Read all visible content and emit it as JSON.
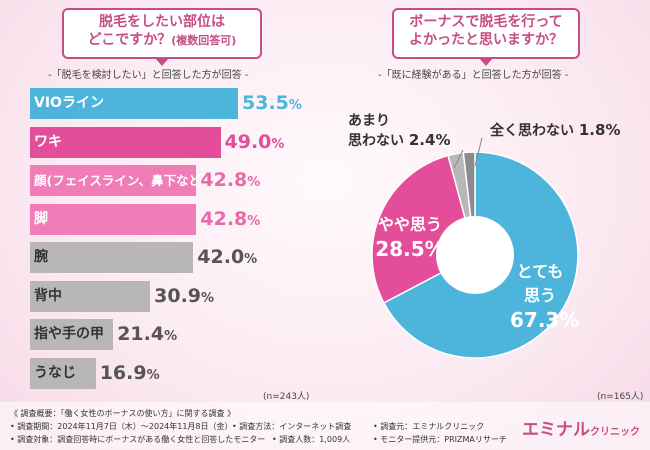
{
  "left": {
    "title_line1": "脱毛をしたい部位は",
    "title_line2": "どこですか？",
    "title_note": "(複数回答可)",
    "subtitle": "-「脱毛を検討したい」と回答した方が回答 -",
    "n_label": "(n=243人)"
  },
  "right": {
    "title_line1": "ボーナスで脱毛を行って",
    "title_line2": "よかったと思いますか？",
    "subtitle": "-「既に経験がある」と回答した方が回答 -",
    "n_label": "(n=165人)"
  },
  "colors": {
    "blue": "#4db5dc",
    "pink_strong": "#e44d9a",
    "pink_light": "#f07cb8",
    "gray": "#b8b6b6",
    "gray_dark": "#8c8a8a",
    "brand": "#c64d85"
  },
  "chart_data": [
    {
      "type": "bar",
      "orientation": "horizontal",
      "title": "脱毛をしたい部位はどこですか？(複数回答可)",
      "categories": [
        "VIOライン",
        "ワキ",
        "顔(フェイスライン、鼻下など)",
        "脚",
        "腕",
        "背中",
        "指や手の甲",
        "うなじ"
      ],
      "values": [
        53.5,
        49.0,
        42.8,
        42.8,
        42.0,
        30.9,
        21.4,
        16.9
      ],
      "value_labels": [
        "53.5%",
        "49.0%",
        "42.8%",
        "42.8%",
        "42.0%",
        "30.9%",
        "21.4%",
        "16.9%"
      ],
      "bar_colors": [
        "#4db5dc",
        "#e44d9a",
        "#f07cb8",
        "#f07cb8",
        "#b8b6b6",
        "#b8b6b6",
        "#b8b6b6",
        "#b8b6b6"
      ],
      "xlim": [
        0,
        60
      ],
      "unit": "%",
      "n": "(n=243人)"
    },
    {
      "type": "pie",
      "donut": true,
      "title": "ボーナスで脱毛を行ってよかったと思いますか？",
      "slices": [
        {
          "label": "とても思う",
          "value": 67.3,
          "value_label": "67.3%",
          "color": "#4db5dc"
        },
        {
          "label": "やや思う",
          "value": 28.5,
          "value_label": "28.5%",
          "color": "#e44d9a"
        },
        {
          "label": "あまり思わない",
          "value": 2.4,
          "value_label": "2.4%",
          "color": "#b8b6b6"
        },
        {
          "label": "全く思わない",
          "value": 1.8,
          "value_label": "1.8%",
          "color": "#8c8a8a"
        }
      ],
      "n": "(n=165人)"
    }
  ],
  "pie_labels": {
    "very_line1": "とても",
    "very_line2": "思う",
    "very_value": "67.3%",
    "somewhat": "やや思う",
    "somewhat_value": "28.5%",
    "notmuch_line1": "あまり",
    "notmuch_line2": "思わない",
    "notmuch_value": "2.4%",
    "notatall": "全く思わない",
    "notatall_value": "1.8%"
  },
  "footer": {
    "line1": "《 調査概要：「働く女性のボーナスの使い方」に関する調査 》",
    "line2a": "• 調査期間：2024年11月7日（木）～2024年11月8日（金）",
    "line2b": "• 調査方法：インターネット調査",
    "line2c": "• 調査元：エミナルクリニック",
    "line3a": "• 調査対象：調査回答時にボーナスがある働く女性と回答したモニター",
    "line3b": "• 調査人数：1,009人",
    "line3c": "• モニター提供元：PRIZMAリサーチ",
    "logo_main": "エミナル",
    "logo_sub": "クリニック"
  }
}
